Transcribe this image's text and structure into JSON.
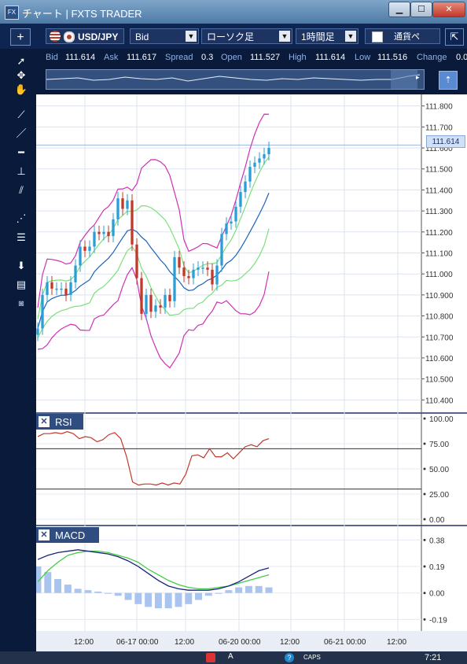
{
  "window": {
    "title": "チャート | FXTS TRADER",
    "app_icon": "FX",
    "min_label": "▁",
    "max_label": "☐",
    "close_label": "✕"
  },
  "toolbar": {
    "add_label": "+",
    "symbol": "USD/JPY",
    "price_side": "Bid",
    "chart_type": "ローソク足",
    "timeframe": "1時間足",
    "pair_button": "通貨ペ",
    "expand_icon": "expand-icon"
  },
  "quote": {
    "bid_label": "Bid",
    "bid": "111.614",
    "ask_label": "Ask",
    "ask": "111.617",
    "spread_label": "Spread",
    "spread": "0.3",
    "open_label": "Open",
    "open": "111.527",
    "high_label": "High",
    "high": "111.614",
    "low_label": "Low",
    "low": "111.516",
    "change_label": "Change",
    "change": "0.0"
  },
  "price_axis": [
    "111.800",
    "111.700",
    "111.600",
    "111.500",
    "111.400",
    "111.300",
    "111.200",
    "111.100",
    "111.000",
    "110.900",
    "110.800",
    "110.700",
    "110.600",
    "110.500",
    "110.400"
  ],
  "current_price": "111.614",
  "rsi": {
    "title": "RSI",
    "ticks": [
      "100.00",
      "75.00",
      "50.00",
      "25.00",
      "0.00"
    ],
    "levels": [
      70,
      30
    ]
  },
  "macd": {
    "title": "MACD",
    "ticks": [
      "0.38",
      "0.19",
      "0.00",
      "-0.19"
    ]
  },
  "time_axis": [
    "12:00",
    "06-17 00:00",
    "12:00",
    "06-20 00:00",
    "12:00",
    "06-21 00:00",
    "12:00"
  ],
  "taskbar": {
    "clock": "7:21",
    "caps": "CAPS"
  },
  "colors": {
    "bull": "#2a9fd6",
    "bear": "#c0392b",
    "upper_band": "#d22fb4",
    "mid_band": "#1c62b8",
    "inner_band": "#7be07b",
    "rsi_line": "#c0392b",
    "macd_line": "#1a237e",
    "signal_line": "#44cc44",
    "histogram": "#a9c4ee"
  },
  "chart_data": [
    {
      "type": "line",
      "title": "",
      "ylim": [
        110.36,
        111.84
      ],
      "series": [
        {
          "name": "",
          "values": [
            110.74,
            110.9,
            110.96,
            110.93,
            110.93,
            110.93,
            110.9,
            110.96,
            111.04,
            111.13,
            111.11,
            111.13,
            111.2,
            111.19,
            111.2,
            111.18,
            111.26,
            111.36,
            111.31,
            111.35,
            111.14,
            110.98,
            110.81,
            110.9,
            110.82,
            110.85,
            110.84,
            110.9,
            110.87,
            111.08,
            111.03,
            110.99,
            110.98,
            111.02,
            111.03,
            111.03,
            111.02,
            110.95,
            111.04,
            111.19,
            111.24,
            111.25,
            111.32,
            111.39,
            111.44,
            111.51,
            111.53,
            111.55,
            111.57,
            111.6
          ]
        }
      ]
    },
    {
      "type": "line",
      "title": "RSI",
      "ylim": [
        0,
        100
      ],
      "series": [
        {
          "name": "",
          "values": [
            82,
            85,
            85,
            86,
            85,
            87,
            85,
            80,
            82,
            81,
            77,
            79,
            84,
            86,
            80,
            62,
            37,
            34,
            35,
            35,
            34,
            36,
            34,
            36,
            35,
            45,
            63,
            64,
            61,
            70,
            62,
            62,
            66,
            60,
            66,
            72,
            74,
            72,
            78,
            80
          ]
        }
      ]
    },
    {
      "type": "line",
      "title": "MACD",
      "ylim": [
        -0.25,
        0.45
      ],
      "series": [
        {
          "name": "",
          "values": [
            0.24,
            0.27,
            0.29,
            0.3,
            0.31,
            0.3,
            0.29,
            0.28,
            0.26,
            0.23,
            0.19,
            0.14,
            0.09,
            0.05,
            0.03,
            0.02,
            0.02,
            0.02,
            0.03,
            0.05,
            0.08,
            0.12,
            0.16,
            0.18
          ]
        },
        {
          "name": "",
          "values": [
            0.08,
            0.16,
            0.22,
            0.27,
            0.29,
            0.3,
            0.3,
            0.29,
            0.27,
            0.25,
            0.22,
            0.17,
            0.13,
            0.09,
            0.06,
            0.04,
            0.03,
            0.03,
            0.04,
            0.05,
            0.07,
            0.09,
            0.11,
            0.13
          ]
        },
        {
          "name": "",
          "values": [
            0.19,
            0.15,
            0.1,
            0.06,
            0.03,
            0.02,
            0.01,
            0.0,
            -0.02,
            -0.05,
            -0.08,
            -0.1,
            -0.11,
            -0.11,
            -0.1,
            -0.08,
            -0.05,
            -0.02,
            0.0,
            0.02,
            0.04,
            0.05,
            0.05,
            0.04
          ]
        }
      ]
    }
  ]
}
